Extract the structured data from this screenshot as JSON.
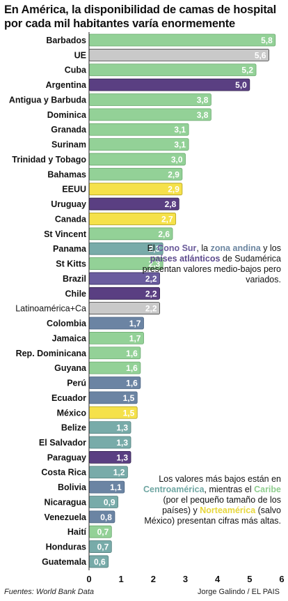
{
  "title": "En América, la disponibilidad de camas de hospital por cada mil habitantes varía enormemente",
  "colors": {
    "caribe": "#93d197",
    "ref": "#c9c9c9",
    "cono_sur": "#5a3f82",
    "norteamerica": "#f5e14a",
    "centroamerica": "#78aba9",
    "atlanticos": "#6a5c9e",
    "andina": "#6b84a3"
  },
  "chart_data": {
    "type": "bar",
    "orientation": "horizontal",
    "xlim": [
      0,
      6
    ],
    "xticks": [
      "0",
      "1",
      "2",
      "3",
      "4",
      "5",
      "6"
    ],
    "grid": false,
    "bars": [
      {
        "label": "Barbados",
        "value": 5.8,
        "display": "5,8",
        "group": "caribe",
        "bold": true
      },
      {
        "label": "UE",
        "value": 5.6,
        "display": "5,6",
        "group": "ref",
        "bold": true
      },
      {
        "label": "Cuba",
        "value": 5.2,
        "display": "5,2",
        "group": "caribe",
        "bold": true
      },
      {
        "label": "Argentina",
        "value": 5.0,
        "display": "5,0",
        "group": "cono_sur",
        "bold": true
      },
      {
        "label": "Antigua y Barbuda",
        "value": 3.8,
        "display": "3,8",
        "group": "caribe",
        "bold": true
      },
      {
        "label": "Dominica",
        "value": 3.8,
        "display": "3,8",
        "group": "caribe",
        "bold": true
      },
      {
        "label": "Granada",
        "value": 3.1,
        "display": "3,1",
        "group": "caribe",
        "bold": true
      },
      {
        "label": "Surinam",
        "value": 3.1,
        "display": "3,1",
        "group": "caribe",
        "bold": true
      },
      {
        "label": "Trinidad y Tobago",
        "value": 3.0,
        "display": "3,0",
        "group": "caribe",
        "bold": true
      },
      {
        "label": "Bahamas",
        "value": 2.9,
        "display": "2,9",
        "group": "caribe",
        "bold": true
      },
      {
        "label": "EEUU",
        "value": 2.9,
        "display": "2,9",
        "group": "norteamerica",
        "bold": true
      },
      {
        "label": "Uruguay",
        "value": 2.8,
        "display": "2,8",
        "group": "cono_sur",
        "bold": true
      },
      {
        "label": "Canada",
        "value": 2.7,
        "display": "2,7",
        "group": "norteamerica",
        "bold": true
      },
      {
        "label": "St Vincent",
        "value": 2.6,
        "display": "2,6",
        "group": "caribe",
        "bold": true
      },
      {
        "label": "Panama",
        "value": 2.3,
        "display": "2,3",
        "group": "centroamerica",
        "bold": true
      },
      {
        "label": "St Kitts",
        "value": 2.3,
        "display": "2,3",
        "group": "caribe",
        "bold": true
      },
      {
        "label": "Brazil",
        "value": 2.2,
        "display": "2,2",
        "group": "atlanticos",
        "bold": true
      },
      {
        "label": "Chile",
        "value": 2.2,
        "display": "2,2",
        "group": "cono_sur",
        "bold": true
      },
      {
        "label": "Latinoamérica+Ca",
        "value": 2.2,
        "display": "2,2",
        "group": "ref",
        "bold": false
      },
      {
        "label": "Colombia",
        "value": 1.7,
        "display": "1,7",
        "group": "andina",
        "bold": true
      },
      {
        "label": "Jamaica",
        "value": 1.7,
        "display": "1,7",
        "group": "caribe",
        "bold": true
      },
      {
        "label": "Rep. Dominicana",
        "value": 1.6,
        "display": "1,6",
        "group": "caribe",
        "bold": true
      },
      {
        "label": "Guyana",
        "value": 1.6,
        "display": "1,6",
        "group": "caribe",
        "bold": true
      },
      {
        "label": "Perú",
        "value": 1.6,
        "display": "1,6",
        "group": "andina",
        "bold": true
      },
      {
        "label": "Ecuador",
        "value": 1.5,
        "display": "1,5",
        "group": "andina",
        "bold": true
      },
      {
        "label": "México",
        "value": 1.5,
        "display": "1,5",
        "group": "norteamerica",
        "bold": true
      },
      {
        "label": "Belize",
        "value": 1.3,
        "display": "1,3",
        "group": "centroamerica",
        "bold": true
      },
      {
        "label": "El Salvador",
        "value": 1.3,
        "display": "1,3",
        "group": "centroamerica",
        "bold": true
      },
      {
        "label": "Paraguay",
        "value": 1.3,
        "display": "1,3",
        "group": "cono_sur",
        "bold": true
      },
      {
        "label": "Costa Rica",
        "value": 1.2,
        "display": "1,2",
        "group": "centroamerica",
        "bold": true
      },
      {
        "label": "Bolivia",
        "value": 1.1,
        "display": "1,1",
        "group": "andina",
        "bold": true
      },
      {
        "label": "Nicaragua",
        "value": 0.9,
        "display": "0,9",
        "group": "centroamerica",
        "bold": true
      },
      {
        "label": "Venezuela",
        "value": 0.8,
        "display": "0,8",
        "group": "andina",
        "bold": true
      },
      {
        "label": "Haití",
        "value": 0.7,
        "display": "0,7",
        "group": "caribe",
        "bold": true
      },
      {
        "label": "Honduras",
        "value": 0.7,
        "display": "0,7",
        "group": "centroamerica",
        "bold": true
      },
      {
        "label": "Guatemala",
        "value": 0.6,
        "display": "0,6",
        "group": "centroamerica",
        "bold": true
      }
    ]
  },
  "notes": {
    "cono_sur": {
      "p1": "El ",
      "t1": "Cono Sur",
      "p2": ", la ",
      "t2": "zona andina",
      "p3": " y los ",
      "t3": "países atlánticos",
      "p4": " de Sudamérica presentan valores medio-bajos pero variados."
    },
    "centro": {
      "p1": "Los valores más bajos están en ",
      "t1": "Centroamérica",
      "p2": ", mientras el ",
      "t2": "Caribe",
      "p3": " (por el pequeño tamaño de los países) y ",
      "t3": "Norteamérica",
      "p4": " (salvo México) presentan cifras más altas."
    }
  },
  "source": "Fuentes: World Bank Data",
  "author": "Jorge Galindo / EL PAIS"
}
